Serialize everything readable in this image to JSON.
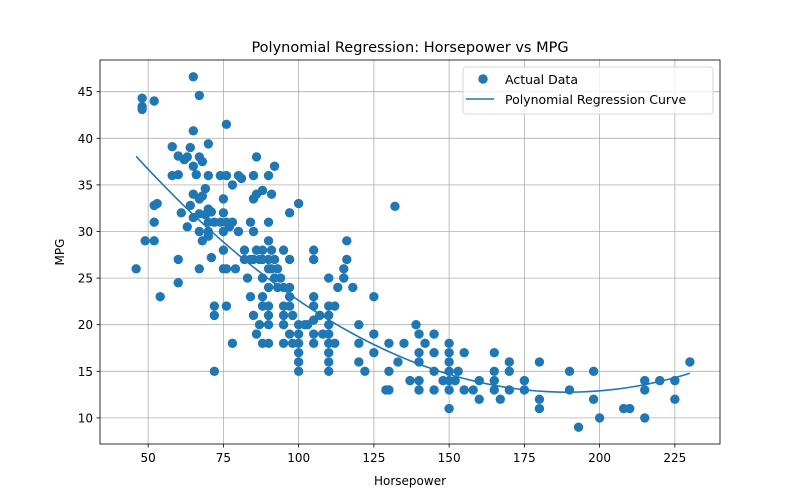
{
  "chart_data": {
    "type": "scatter",
    "title": "Polynomial Regression: Horsepower vs MPG",
    "xlabel": "Horsepower",
    "ylabel": "MPG",
    "xlim": [
      34,
      240
    ],
    "ylim": [
      7.2,
      48.4
    ],
    "xticks": [
      50,
      75,
      100,
      125,
      150,
      175,
      200,
      225
    ],
    "yticks": [
      10,
      15,
      20,
      25,
      30,
      35,
      40,
      45
    ],
    "grid": true,
    "legend_position": "top-right",
    "colors": {
      "series": "#1f77b4",
      "grid": "#b0b0b0"
    },
    "series": [
      {
        "name": "Actual Data",
        "kind": "scatter",
        "points": [
          [
            46,
            26
          ],
          [
            48,
            44.3
          ],
          [
            48,
            43.4
          ],
          [
            48,
            43.1
          ],
          [
            49,
            29
          ],
          [
            52,
            44
          ],
          [
            52,
            32.8
          ],
          [
            52,
            31
          ],
          [
            52,
            29
          ],
          [
            53,
            33
          ],
          [
            54,
            23
          ],
          [
            58,
            39.1
          ],
          [
            58,
            36
          ],
          [
            60,
            38.1
          ],
          [
            60,
            36.1
          ],
          [
            60,
            27
          ],
          [
            60,
            24.5
          ],
          [
            61,
            32
          ],
          [
            62,
            37.7
          ],
          [
            63,
            38
          ],
          [
            63,
            30.5
          ],
          [
            64,
            39
          ],
          [
            64,
            32.8
          ],
          [
            65,
            46.6
          ],
          [
            65,
            40.8
          ],
          [
            65,
            37
          ],
          [
            65,
            34
          ],
          [
            65,
            31.5
          ],
          [
            66,
            36.1
          ],
          [
            67,
            33.5
          ],
          [
            67,
            31.9
          ],
          [
            67,
            30
          ],
          [
            67,
            38
          ],
          [
            67,
            44.6
          ],
          [
            67,
            26
          ],
          [
            68,
            33.8
          ],
          [
            68,
            37.5
          ],
          [
            68,
            29
          ],
          [
            69,
            31.8
          ],
          [
            69,
            34.6
          ],
          [
            70,
            39.4
          ],
          [
            70,
            36
          ],
          [
            70,
            32.4
          ],
          [
            70,
            31
          ],
          [
            70,
            30
          ],
          [
            70,
            29.5
          ],
          [
            71,
            32.1
          ],
          [
            71,
            27.2
          ],
          [
            72,
            31
          ],
          [
            72,
            22
          ],
          [
            72,
            21
          ],
          [
            72,
            15
          ],
          [
            74,
            36
          ],
          [
            74,
            31
          ],
          [
            75,
            32
          ],
          [
            75,
            33.5
          ],
          [
            75,
            30
          ],
          [
            75,
            28
          ],
          [
            75,
            26
          ],
          [
            76,
            41.5
          ],
          [
            76,
            36
          ],
          [
            76,
            31
          ],
          [
            76,
            26
          ],
          [
            76,
            22
          ],
          [
            77,
            30.5
          ],
          [
            78,
            35
          ],
          [
            78,
            31
          ],
          [
            78,
            18
          ],
          [
            79,
            26
          ],
          [
            80,
            36
          ],
          [
            80,
            30
          ],
          [
            81,
            35.7
          ],
          [
            82,
            28
          ],
          [
            82,
            27
          ],
          [
            83,
            25
          ],
          [
            84,
            31
          ],
          [
            84,
            27
          ],
          [
            84,
            23
          ],
          [
            85,
            33.5
          ],
          [
            85,
            36
          ],
          [
            85,
            30
          ],
          [
            85,
            27
          ],
          [
            85,
            21
          ],
          [
            86,
            38
          ],
          [
            86,
            34
          ],
          [
            86,
            28
          ],
          [
            86,
            19
          ],
          [
            87,
            27
          ],
          [
            87,
            20
          ],
          [
            88,
            34.4
          ],
          [
            88,
            28
          ],
          [
            88,
            27
          ],
          [
            88,
            25
          ],
          [
            88,
            23
          ],
          [
            88,
            22
          ],
          [
            88,
            18
          ],
          [
            90,
            36
          ],
          [
            90,
            31
          ],
          [
            90,
            29
          ],
          [
            90,
            27
          ],
          [
            90,
            26
          ],
          [
            90,
            24
          ],
          [
            90,
            22
          ],
          [
            90,
            21
          ],
          [
            90,
            20
          ],
          [
            90,
            18
          ],
          [
            91,
            34
          ],
          [
            91,
            28
          ],
          [
            91,
            26
          ],
          [
            92,
            37
          ],
          [
            92,
            27
          ],
          [
            92,
            25
          ],
          [
            93,
            26
          ],
          [
            93,
            24
          ],
          [
            94,
            25
          ],
          [
            95,
            28
          ],
          [
            95,
            24
          ],
          [
            95,
            22
          ],
          [
            95,
            21
          ],
          [
            95,
            20
          ],
          [
            95,
            18
          ],
          [
            97,
            32
          ],
          [
            97,
            27
          ],
          [
            97,
            24
          ],
          [
            97,
            23
          ],
          [
            97,
            22
          ],
          [
            97,
            19
          ],
          [
            98,
            21
          ],
          [
            98,
            18
          ],
          [
            100,
            33
          ],
          [
            100,
            20
          ],
          [
            100,
            19
          ],
          [
            100,
            18
          ],
          [
            100,
            17
          ],
          [
            100,
            16
          ],
          [
            100,
            15
          ],
          [
            102,
            20
          ],
          [
            103,
            20
          ],
          [
            105,
            28
          ],
          [
            105,
            27
          ],
          [
            105,
            23
          ],
          [
            105,
            22
          ],
          [
            105,
            20.5
          ],
          [
            105,
            19
          ],
          [
            105,
            18
          ],
          [
            107,
            21
          ],
          [
            108,
            19
          ],
          [
            110,
            25
          ],
          [
            110,
            22
          ],
          [
            110,
            21
          ],
          [
            110,
            20
          ],
          [
            110,
            19
          ],
          [
            110,
            18
          ],
          [
            110,
            17
          ],
          [
            110,
            16
          ],
          [
            110,
            15
          ],
          [
            112,
            22
          ],
          [
            112,
            18
          ],
          [
            113,
            24
          ],
          [
            115,
            26
          ],
          [
            115,
            25
          ],
          [
            116,
            29
          ],
          [
            116,
            27
          ],
          [
            118,
            24
          ],
          [
            120,
            20
          ],
          [
            120,
            18
          ],
          [
            120,
            16
          ],
          [
            122,
            15
          ],
          [
            125,
            23
          ],
          [
            125,
            19
          ],
          [
            125,
            17
          ],
          [
            129,
            13
          ],
          [
            130,
            15
          ],
          [
            130,
            13
          ],
          [
            130,
            18
          ],
          [
            132,
            32.7
          ],
          [
            133,
            16
          ],
          [
            135,
            18
          ],
          [
            137,
            14
          ],
          [
            139,
            20
          ],
          [
            140,
            19
          ],
          [
            140,
            17
          ],
          [
            140,
            16
          ],
          [
            140,
            14
          ],
          [
            140,
            13
          ],
          [
            142,
            18
          ],
          [
            145,
            19
          ],
          [
            145,
            17
          ],
          [
            145,
            15
          ],
          [
            145,
            13
          ],
          [
            148,
            14
          ],
          [
            150,
            18
          ],
          [
            150,
            17
          ],
          [
            150,
            16
          ],
          [
            150,
            15
          ],
          [
            150,
            14
          ],
          [
            150,
            13
          ],
          [
            150,
            11
          ],
          [
            152,
            14
          ],
          [
            153,
            15
          ],
          [
            155,
            17
          ],
          [
            155,
            13
          ],
          [
            158,
            13
          ],
          [
            160,
            14
          ],
          [
            160,
            12
          ],
          [
            165,
            17
          ],
          [
            165,
            15
          ],
          [
            165,
            14
          ],
          [
            165,
            13
          ],
          [
            167,
            12
          ],
          [
            170,
            16
          ],
          [
            170,
            15
          ],
          [
            170,
            13
          ],
          [
            175,
            14
          ],
          [
            175,
            13
          ],
          [
            180,
            16
          ],
          [
            180,
            12
          ],
          [
            180,
            11
          ],
          [
            190,
            15
          ],
          [
            190,
            13
          ],
          [
            193,
            9
          ],
          [
            198,
            15
          ],
          [
            198,
            12
          ],
          [
            200,
            10
          ],
          [
            208,
            11
          ],
          [
            210,
            11
          ],
          [
            215,
            14
          ],
          [
            215,
            13
          ],
          [
            215,
            10
          ],
          [
            220,
            14
          ],
          [
            225,
            14
          ],
          [
            225,
            12
          ],
          [
            230,
            16
          ]
        ]
      },
      {
        "name": "Polynomial Regression Curve",
        "kind": "line",
        "coefficients": [
          56.9,
          -0.466,
          0.00123
        ],
        "x_range": [
          46,
          230
        ]
      }
    ]
  }
}
